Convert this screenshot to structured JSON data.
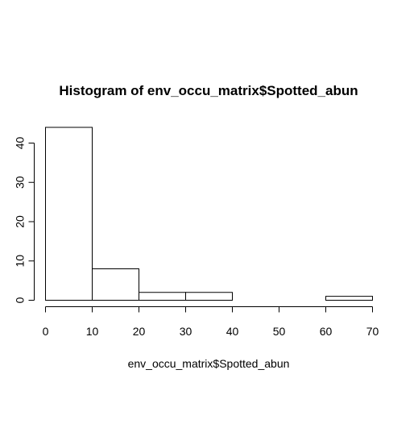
{
  "chart_data": {
    "type": "bar",
    "title": "Histogram of env_occu_matrix$Spotted_abun",
    "xlabel": "env_occu_matrix$Spotted_abun",
    "ylabel": "",
    "bins": [
      {
        "x0": 0,
        "x1": 10,
        "count": 44
      },
      {
        "x0": 10,
        "x1": 20,
        "count": 8
      },
      {
        "x0": 20,
        "x1": 30,
        "count": 2
      },
      {
        "x0": 30,
        "x1": 40,
        "count": 2
      },
      {
        "x0": 40,
        "x1": 50,
        "count": 0
      },
      {
        "x0": 50,
        "x1": 60,
        "count": 0
      },
      {
        "x0": 60,
        "x1": 70,
        "count": 1
      }
    ],
    "xticks": [
      0,
      10,
      20,
      30,
      40,
      50,
      60,
      70
    ],
    "yticks": [
      0,
      10,
      20,
      30,
      40
    ],
    "xlim": [
      0,
      70
    ],
    "ylim": [
      0,
      44
    ],
    "grid": false,
    "legend": "none",
    "bar_fill": "#ffffff",
    "bar_stroke": "#000000"
  }
}
